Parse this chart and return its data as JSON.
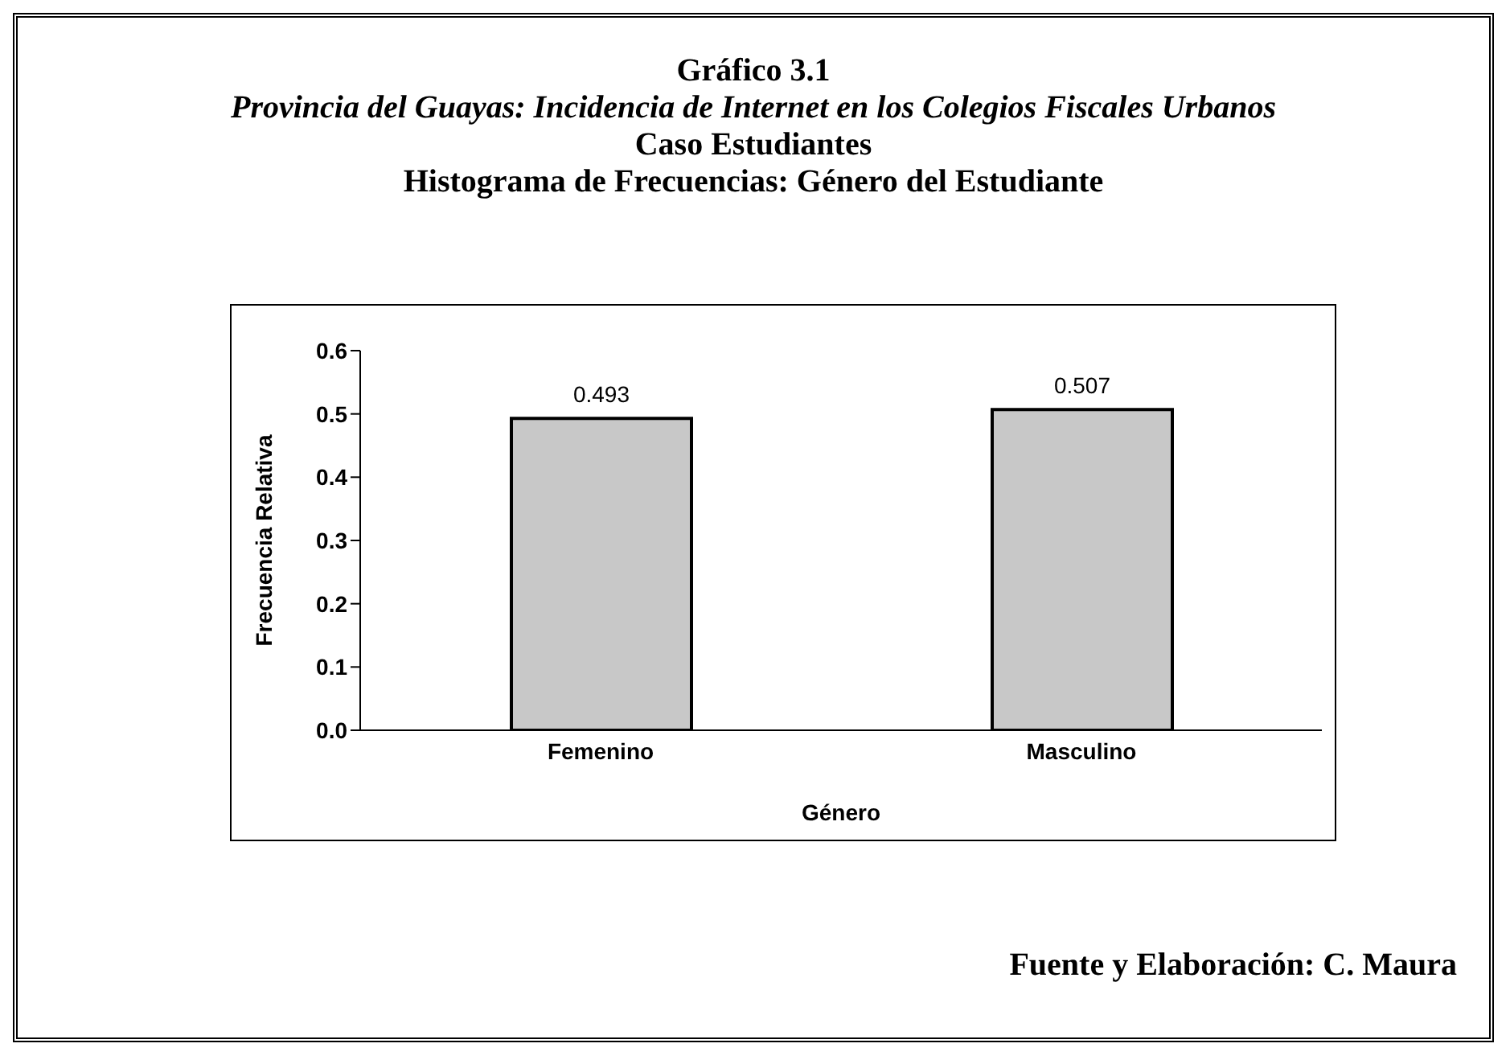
{
  "chart_data": {
    "type": "bar",
    "title": "Gráfico 3.1",
    "subtitle": "Provincia del Guayas: Incidencia de Internet en los Colegios Fiscales Urbanos",
    "annotations": [
      "Caso Estudiantes",
      "Histograma de Frecuencias: Género del Estudiante",
      "Fuente y Elaboración: C. Maura"
    ],
    "xlabel": "Género",
    "ylabel": "Frecuencia Relativa",
    "categories": [
      "Femenino",
      "Masculino"
    ],
    "values": [
      0.493,
      0.507
    ],
    "color": "#c8c8c8",
    "ylim": [
      0,
      0.6
    ],
    "yticks": [
      {
        "value": 0,
        "label": "0.0"
      },
      0.1,
      0.2,
      0.3,
      0.4,
      0.5,
      0.6
    ],
    "data_labels": true
  }
}
